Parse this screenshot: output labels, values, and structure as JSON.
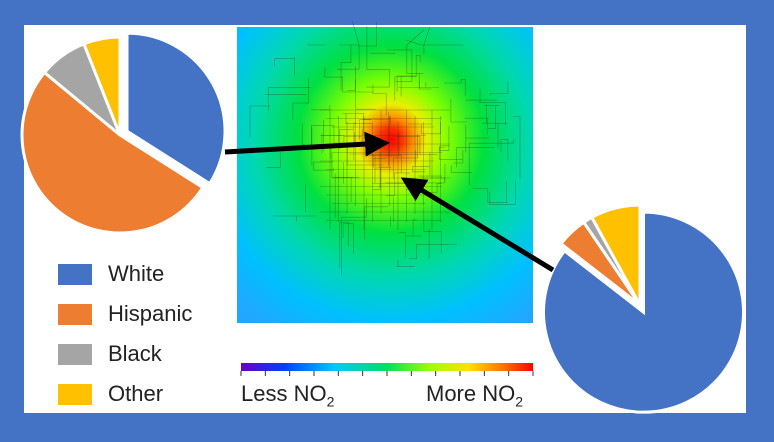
{
  "chart_data": [
    {
      "type": "pie",
      "title": "",
      "categories": [
        "White",
        "Hispanic",
        "Black",
        "Other"
      ],
      "values": [
        0.34,
        0.52,
        0.08,
        0.06
      ],
      "colors": [
        "#4472c4",
        "#ed7d31",
        "#a5a5a5",
        "#ffc000"
      ],
      "exploded": "White"
    },
    {
      "type": "pie",
      "title": "",
      "categories": [
        "White",
        "Hispanic",
        "Black",
        "Other"
      ],
      "values": [
        0.855,
        0.05,
        0.015,
        0.08
      ],
      "colors": [
        "#4472c4",
        "#ed7d31",
        "#a5a5a5",
        "#ffc000"
      ],
      "exploded": "White"
    },
    {
      "type": "heatmap",
      "title": "",
      "colorbar": {
        "low_label": "Less NO",
        "high_label": "More NO",
        "subscript": "2",
        "colormap": [
          "#6a00c8",
          "#0040ff",
          "#00c8ff",
          "#00e060",
          "#a0ff00",
          "#ffe000",
          "#ff7000",
          "#ff0000"
        ]
      },
      "hotspot": "center",
      "arrows": [
        "from pie 1 to hotspot",
        "from pie 2 to southeast of hotspot"
      ]
    }
  ],
  "legend": [
    {
      "label": "White",
      "color": "#4472c4"
    },
    {
      "label": "Hispanic",
      "color": "#ed7d31"
    },
    {
      "label": "Black",
      "color": "#a5a5a5"
    },
    {
      "label": "Other",
      "color": "#ffc000"
    }
  ]
}
